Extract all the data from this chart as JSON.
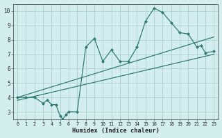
{
  "main_x": [
    0,
    1,
    2,
    3,
    3.5,
    4,
    4.5,
    5,
    5.3,
    5.7,
    6,
    7,
    8,
    9,
    10,
    11,
    12,
    13,
    14,
    15,
    16,
    17,
    18,
    19,
    20,
    21,
    21.5,
    22,
    23
  ],
  "main_y": [
    4.0,
    4.0,
    4.0,
    3.6,
    3.8,
    3.5,
    3.5,
    2.7,
    2.5,
    2.8,
    3.0,
    3.0,
    7.5,
    8.1,
    6.5,
    7.3,
    6.5,
    6.5,
    7.5,
    9.3,
    10.2,
    9.9,
    9.2,
    8.5,
    8.4,
    7.5,
    7.6,
    7.1,
    7.2
  ],
  "line1_x": [
    0,
    23
  ],
  "line1_y": [
    4.0,
    8.2
  ],
  "line2_x": [
    0,
    23
  ],
  "line2_y": [
    3.8,
    7.0
  ],
  "color": "#2e7d6e",
  "bg_color": "#d4eeee",
  "grid_color": "#aacece",
  "xlabel": "Humidex (Indice chaleur)",
  "xlim": [
    -0.5,
    23.5
  ],
  "ylim": [
    2.5,
    10.5
  ],
  "yticks": [
    3,
    4,
    5,
    6,
    7,
    8,
    9,
    10
  ],
  "xticks": [
    0,
    1,
    2,
    3,
    4,
    5,
    6,
    7,
    8,
    9,
    10,
    11,
    12,
    13,
    14,
    15,
    16,
    17,
    18,
    19,
    20,
    21,
    22,
    23
  ]
}
